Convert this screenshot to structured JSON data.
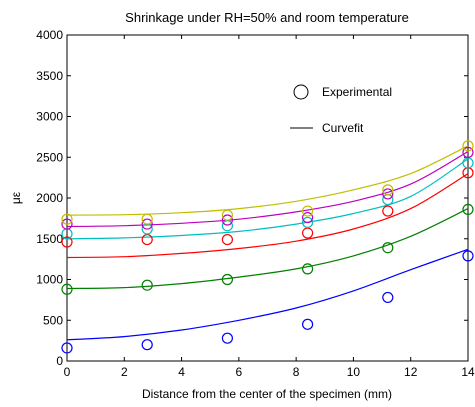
{
  "chart_data": {
    "type": "scatter",
    "title": "Shrinkage under RH=50% and room temperature",
    "xlabel": "Distance from the center of the specimen (mm)",
    "ylabel": "με",
    "xlim": [
      0,
      14
    ],
    "ylim": [
      0,
      4000
    ],
    "xticks": [
      0,
      2,
      4,
      6,
      8,
      10,
      12,
      14
    ],
    "yticks": [
      0,
      500,
      1000,
      1500,
      2000,
      2500,
      3000,
      3500,
      4000
    ],
    "grid": false,
    "legend": {
      "placement": "top-right",
      "entries": [
        {
          "label": "Experimental",
          "marker": "circle"
        },
        {
          "label": "Curvefit",
          "marker": "line"
        }
      ]
    },
    "series": [
      {
        "color": "#0000ff",
        "experimental": {
          "x": [
            0,
            2.8,
            5.6,
            8.4,
            11.2,
            14
          ],
          "y": [
            160,
            200,
            280,
            450,
            780,
            1290
          ]
        },
        "curvefit": {
          "x": [
            0,
            2,
            4,
            6,
            8,
            10,
            12,
            14
          ],
          "y": [
            260,
            300,
            380,
            500,
            650,
            860,
            1120,
            1370
          ]
        }
      },
      {
        "color": "#008000",
        "experimental": {
          "x": [
            0,
            2.8,
            5.6,
            8.4,
            11.2,
            14
          ],
          "y": [
            880,
            930,
            1000,
            1130,
            1390,
            1860
          ]
        },
        "curvefit": {
          "x": [
            0,
            2,
            4,
            6,
            8,
            10,
            12,
            14
          ],
          "y": [
            890,
            900,
            950,
            1030,
            1130,
            1290,
            1530,
            1870
          ]
        }
      },
      {
        "color": "#ff0000",
        "experimental": {
          "x": [
            0,
            2.8,
            5.6,
            8.4,
            11.2,
            14
          ],
          "y": [
            1460,
            1490,
            1490,
            1570,
            1840,
            2310
          ]
        },
        "curvefit": {
          "x": [
            0,
            2,
            4,
            6,
            8,
            10,
            12,
            14
          ],
          "y": [
            1270,
            1280,
            1320,
            1380,
            1470,
            1620,
            1870,
            2300
          ]
        }
      },
      {
        "color": "#00bfbf",
        "experimental": {
          "x": [
            0,
            2.8,
            5.6,
            8.4,
            11.2,
            14
          ],
          "y": [
            1560,
            1620,
            1660,
            1700,
            1980,
            2430
          ]
        },
        "curvefit": {
          "x": [
            0,
            2,
            4,
            6,
            8,
            10,
            12,
            14
          ],
          "y": [
            1500,
            1510,
            1540,
            1590,
            1680,
            1810,
            2020,
            2480
          ]
        }
      },
      {
        "color": "#bf00bf",
        "experimental": {
          "x": [
            0,
            2.8,
            5.6,
            8.4,
            11.2,
            14
          ],
          "y": [
            1680,
            1680,
            1730,
            1760,
            2050,
            2560
          ]
        },
        "curvefit": {
          "x": [
            0,
            2,
            4,
            6,
            8,
            10,
            12,
            14
          ],
          "y": [
            1650,
            1660,
            1690,
            1740,
            1830,
            1960,
            2170,
            2570
          ]
        }
      },
      {
        "color": "#bfbf00",
        "experimental": {
          "x": [
            0,
            2.8,
            5.6,
            8.4,
            11.2,
            14
          ],
          "y": [
            1740,
            1740,
            1790,
            1840,
            2100,
            2640
          ]
        },
        "curvefit": {
          "x": [
            0,
            2,
            4,
            6,
            8,
            10,
            12,
            14
          ],
          "y": [
            1790,
            1795,
            1820,
            1870,
            1960,
            2100,
            2300,
            2640
          ]
        }
      }
    ]
  }
}
